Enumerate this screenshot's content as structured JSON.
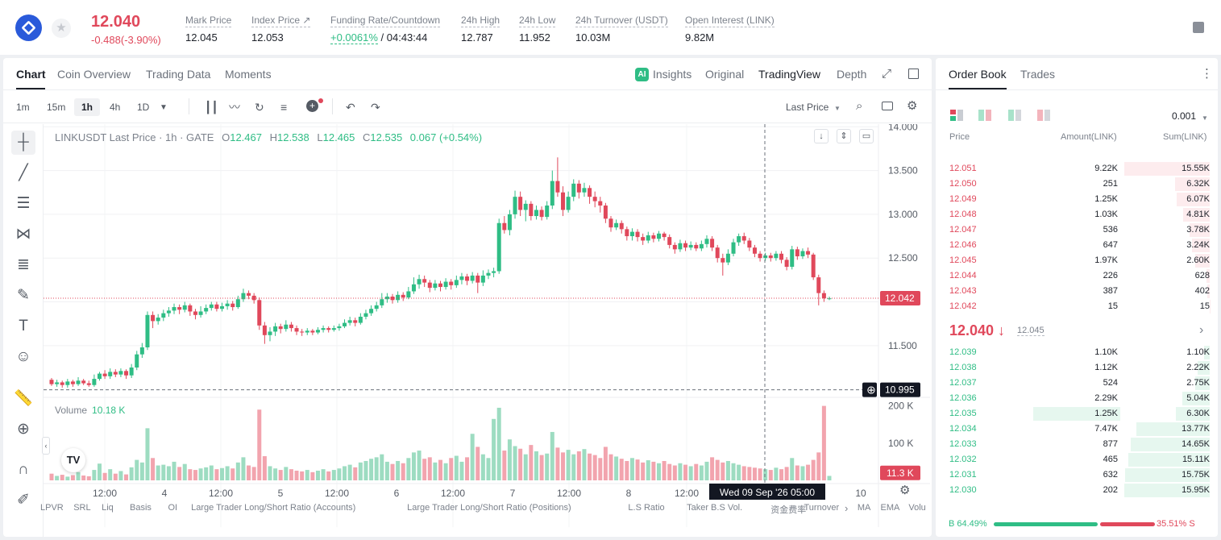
{
  "header": {
    "last_price": "12.040",
    "change": "-0.488(-3.90%)",
    "stats": [
      {
        "label": "Mark Price",
        "value": "12.045"
      },
      {
        "label": "Index Price ↗",
        "value": "12.053"
      },
      {
        "label": "Funding Rate/Countdown",
        "value_green": "+0.0061%",
        "value": " / 04:43:44"
      },
      {
        "label": "24h High",
        "value": "12.787"
      },
      {
        "label": "24h Low",
        "value": "11.952"
      },
      {
        "label": "24h Turnover (USDT)",
        "value": "10.03M"
      },
      {
        "label": "Open Interest (LINK)",
        "value": "9.82M"
      }
    ]
  },
  "chart_tabs": [
    "Chart",
    "Coin Overview",
    "Trading Data",
    "Moments"
  ],
  "view_tabs": {
    "insights": "Insights",
    "original": "Original",
    "tradingview": "TradingView",
    "depth": "Depth"
  },
  "timeframes": [
    "1m",
    "15m",
    "1h",
    "4h",
    "1D"
  ],
  "price_type": "Last Price",
  "legend": {
    "title": "LINKUSDT Last Price · 1h · GATE",
    "o_label": "O",
    "o": "12.467",
    "h_label": "H",
    "h": "12.538",
    "l_label": "L",
    "l": "12.465",
    "c_label": "C",
    "c": "12.535",
    "chg": "0.067 (+0.54%)"
  },
  "volume_legend": {
    "label": "Volume",
    "value": "10.18 K"
  },
  "price_axis": [
    "14.000",
    "13.500",
    "13.000",
    "12.500",
    "12.000",
    "11.500"
  ],
  "current_price_tag": "12.042",
  "crosshair_price_tag": "10.995",
  "volume_axis": [
    "200 K",
    "100 K"
  ],
  "volume_tag": "11.3 K",
  "time_axis": [
    "12:00",
    "4",
    "12:00",
    "5",
    "12:00",
    "6",
    "12:00",
    "7",
    "12:00",
    "8",
    "12:00",
    "10"
  ],
  "crosshair_time": "Wed 09 Sep '26   05:00",
  "indicators": [
    "LPVR",
    "SRL",
    "Liq",
    "Basis",
    "OI",
    "Large Trader Long/Short Ratio (Accounts)",
    "Large Trader Long/Short Ratio (Positions)",
    "L.S Ratio",
    "Taker B.S Vol.",
    "资金费率",
    "Turnover",
    "MA",
    "EMA",
    "Volu"
  ],
  "colors": {
    "up": "#2fbd85",
    "down": "#e0485b"
  },
  "chart_data": {
    "type": "candlestick",
    "title": "LINKUSDT Last Price · 1h · GATE",
    "ylim": [
      11.0,
      14.0
    ],
    "candles": [
      [
        11.11,
        11.06,
        11.13,
        11.04
      ],
      [
        11.06,
        11.08,
        11.11,
        11.03
      ],
      [
        11.08,
        11.05,
        11.1,
        11.02
      ],
      [
        11.05,
        11.09,
        11.12,
        11.02
      ],
      [
        11.09,
        11.06,
        11.11,
        11.03
      ],
      [
        11.06,
        11.1,
        11.14,
        11.04
      ],
      [
        11.1,
        11.07,
        11.12,
        11.05
      ],
      [
        11.07,
        11.05,
        11.1,
        11.03
      ],
      [
        11.05,
        11.12,
        11.17,
        11.03
      ],
      [
        11.12,
        11.18,
        11.2,
        11.1
      ],
      [
        11.18,
        11.15,
        11.22,
        11.12
      ],
      [
        11.15,
        11.2,
        11.24,
        11.12
      ],
      [
        11.2,
        11.17,
        11.23,
        11.14
      ],
      [
        11.17,
        11.21,
        11.24,
        11.14
      ],
      [
        11.21,
        11.16,
        11.23,
        11.12
      ],
      [
        11.16,
        11.25,
        11.29,
        11.13
      ],
      [
        11.25,
        11.4,
        11.44,
        11.22
      ],
      [
        11.4,
        11.48,
        11.53,
        11.36
      ],
      [
        11.48,
        11.85,
        11.89,
        11.45
      ],
      [
        11.85,
        11.78,
        11.89,
        11.7
      ],
      [
        11.78,
        11.82,
        11.86,
        11.74
      ],
      [
        11.82,
        11.87,
        11.91,
        11.78
      ],
      [
        11.87,
        11.9,
        11.94,
        11.83
      ],
      [
        11.9,
        11.94,
        11.98,
        11.86
      ],
      [
        11.94,
        11.91,
        11.97,
        11.86
      ],
      [
        11.91,
        11.96,
        12.0,
        11.88
      ],
      [
        11.96,
        11.89,
        11.98,
        11.84
      ],
      [
        11.89,
        11.85,
        11.92,
        11.8
      ],
      [
        11.85,
        11.89,
        11.95,
        11.82
      ],
      [
        11.89,
        11.93,
        11.97,
        11.86
      ],
      [
        11.93,
        11.97,
        12.0,
        11.9
      ],
      [
        11.97,
        11.92,
        12.0,
        11.89
      ],
      [
        11.92,
        11.95,
        11.99,
        11.89
      ],
      [
        11.95,
        11.98,
        12.02,
        11.91
      ],
      [
        11.98,
        11.94,
        12.01,
        11.9
      ],
      [
        11.94,
        12.03,
        12.07,
        11.92
      ],
      [
        12.03,
        12.1,
        12.15,
        12.0
      ],
      [
        12.1,
        12.07,
        12.13,
        12.03
      ],
      [
        12.07,
        12.02,
        12.1,
        11.98
      ],
      [
        12.02,
        11.73,
        12.05,
        11.68
      ],
      [
        11.73,
        11.62,
        11.77,
        11.52
      ],
      [
        11.62,
        11.66,
        11.71,
        11.55
      ],
      [
        11.66,
        11.72,
        11.76,
        11.61
      ],
      [
        11.72,
        11.69,
        11.75,
        11.64
      ],
      [
        11.69,
        11.74,
        11.79,
        11.66
      ],
      [
        11.74,
        11.7,
        11.77,
        11.66
      ],
      [
        11.7,
        11.66,
        11.73,
        11.62
      ],
      [
        11.66,
        11.65,
        11.69,
        11.61
      ],
      [
        11.65,
        11.67,
        11.7,
        11.62
      ],
      [
        11.67,
        11.65,
        11.69,
        11.62
      ],
      [
        11.65,
        11.68,
        11.71,
        11.63
      ],
      [
        11.68,
        11.7,
        11.73,
        11.65
      ],
      [
        11.7,
        11.68,
        11.72,
        11.65
      ],
      [
        11.68,
        11.7,
        11.73,
        11.66
      ],
      [
        11.7,
        11.72,
        11.75,
        11.67
      ],
      [
        11.72,
        11.76,
        11.8,
        11.7
      ],
      [
        11.76,
        11.79,
        11.83,
        11.73
      ],
      [
        11.79,
        11.76,
        11.82,
        11.72
      ],
      [
        11.76,
        11.83,
        11.87,
        11.74
      ],
      [
        11.83,
        11.87,
        11.91,
        11.8
      ],
      [
        11.87,
        11.92,
        11.96,
        11.84
      ],
      [
        11.92,
        11.96,
        12.0,
        11.89
      ],
      [
        11.96,
        12.03,
        12.1,
        11.93
      ],
      [
        12.03,
        12.06,
        12.1,
        11.99
      ],
      [
        12.06,
        12.02,
        12.09,
        11.98
      ],
      [
        12.02,
        12.08,
        12.12,
        11.99
      ],
      [
        12.08,
        12.05,
        12.11,
        12.01
      ],
      [
        12.05,
        12.12,
        12.17,
        12.03
      ],
      [
        12.12,
        12.2,
        12.28,
        12.09
      ],
      [
        12.2,
        12.26,
        12.31,
        12.15
      ],
      [
        12.26,
        12.22,
        12.3,
        12.17
      ],
      [
        12.22,
        12.16,
        12.25,
        12.11
      ],
      [
        12.16,
        12.21,
        12.25,
        12.13
      ],
      [
        12.21,
        12.17,
        12.24,
        12.12
      ],
      [
        12.17,
        12.23,
        12.27,
        12.14
      ],
      [
        12.23,
        12.19,
        12.26,
        12.14
      ],
      [
        12.19,
        12.25,
        12.3,
        12.16
      ],
      [
        12.25,
        12.29,
        12.33,
        12.2
      ],
      [
        12.29,
        12.24,
        12.32,
        12.19
      ],
      [
        12.24,
        12.3,
        12.34,
        12.21
      ],
      [
        12.3,
        12.22,
        12.33,
        12.1
      ],
      [
        12.22,
        12.3,
        12.36,
        12.18
      ],
      [
        12.3,
        12.33,
        12.37,
        12.26
      ],
      [
        12.33,
        12.35,
        12.39,
        12.28
      ],
      [
        12.35,
        12.9,
        12.95,
        12.32
      ],
      [
        12.9,
        12.82,
        12.98,
        12.78
      ],
      [
        12.82,
        13.0,
        13.05,
        12.76
      ],
      [
        13.0,
        13.2,
        13.27,
        12.95
      ],
      [
        13.2,
        13.05,
        13.26,
        12.98
      ],
      [
        13.05,
        13.12,
        13.16,
        12.92
      ],
      [
        13.12,
        12.98,
        13.15,
        12.93
      ],
      [
        12.98,
        13.05,
        13.1,
        12.94
      ],
      [
        13.05,
        12.97,
        13.09,
        12.93
      ],
      [
        12.97,
        13.1,
        13.15,
        12.94
      ],
      [
        13.1,
        13.38,
        13.5,
        13.06
      ],
      [
        13.38,
        13.25,
        13.65,
        13.2
      ],
      [
        13.25,
        13.05,
        13.32,
        12.98
      ],
      [
        13.05,
        13.2,
        13.26,
        13.02
      ],
      [
        13.2,
        13.35,
        13.4,
        13.15
      ],
      [
        13.35,
        13.25,
        13.39,
        13.18
      ],
      [
        13.25,
        13.3,
        13.36,
        13.2
      ],
      [
        13.3,
        13.2,
        13.33,
        13.12
      ],
      [
        13.2,
        13.15,
        13.26,
        13.08
      ],
      [
        13.15,
        13.1,
        13.2,
        13.02
      ],
      [
        13.1,
        12.95,
        13.13,
        12.9
      ],
      [
        12.95,
        12.85,
        12.98,
        12.8
      ],
      [
        12.85,
        12.9,
        12.94,
        12.82
      ],
      [
        12.9,
        12.83,
        12.93,
        12.78
      ],
      [
        12.83,
        12.75,
        12.86,
        12.7
      ],
      [
        12.75,
        12.8,
        12.84,
        12.7
      ],
      [
        12.8,
        12.74,
        12.83,
        12.69
      ],
      [
        12.74,
        12.7,
        12.78,
        12.65
      ],
      [
        12.7,
        12.76,
        12.8,
        12.67
      ],
      [
        12.76,
        12.72,
        12.79,
        12.68
      ],
      [
        12.72,
        12.78,
        12.81,
        12.69
      ],
      [
        12.78,
        12.74,
        12.8,
        12.7
      ],
      [
        12.74,
        12.65,
        12.77,
        12.61
      ],
      [
        12.65,
        12.6,
        12.68,
        12.55
      ],
      [
        12.6,
        12.67,
        12.71,
        12.57
      ],
      [
        12.67,
        12.62,
        12.7,
        12.58
      ],
      [
        12.62,
        12.65,
        12.69,
        12.59
      ],
      [
        12.65,
        12.61,
        12.68,
        12.58
      ],
      [
        12.61,
        12.66,
        12.7,
        12.58
      ],
      [
        12.66,
        12.72,
        12.76,
        12.62
      ],
      [
        12.72,
        12.62,
        12.75,
        12.58
      ],
      [
        12.62,
        12.5,
        12.65,
        12.45
      ],
      [
        12.5,
        12.45,
        12.55,
        12.3
      ],
      [
        12.45,
        12.55,
        12.6,
        12.42
      ],
      [
        12.55,
        12.68,
        12.72,
        12.52
      ],
      [
        12.68,
        12.75,
        12.78,
        12.64
      ],
      [
        12.75,
        12.7,
        12.79,
        12.66
      ],
      [
        12.7,
        12.62,
        12.73,
        12.58
      ],
      [
        12.62,
        12.55,
        12.65,
        12.51
      ],
      [
        12.55,
        12.5,
        12.58,
        12.46
      ],
      [
        12.5,
        12.53,
        12.56,
        12.47
      ],
      [
        12.53,
        12.5,
        12.56,
        12.46
      ],
      [
        12.5,
        12.55,
        12.58,
        12.47
      ],
      [
        12.55,
        12.48,
        12.58,
        12.44
      ],
      [
        12.48,
        12.4,
        12.51,
        12.36
      ],
      [
        12.4,
        12.6,
        12.64,
        12.37
      ],
      [
        12.6,
        12.52,
        12.63,
        12.48
      ],
      [
        12.52,
        12.58,
        12.61,
        12.49
      ],
      [
        12.58,
        12.54,
        12.62,
        12.5
      ],
      [
        12.54,
        12.28,
        12.56,
        12.25
      ],
      [
        12.28,
        12.1,
        12.31,
        11.96
      ],
      [
        12.1,
        12.04,
        12.13,
        12.0
      ],
      [
        12.04,
        12.04,
        12.06,
        12.02
      ]
    ],
    "volumes": [
      18,
      12,
      15,
      10,
      14,
      22,
      13,
      11,
      28,
      45,
      20,
      30,
      18,
      25,
      16,
      35,
      55,
      48,
      140,
      60,
      40,
      42,
      38,
      50,
      36,
      44,
      30,
      28,
      32,
      35,
      40,
      30,
      33,
      38,
      32,
      48,
      62,
      40,
      36,
      190,
      65,
      38,
      32,
      28,
      36,
      30,
      26,
      24,
      28,
      22,
      26,
      30,
      24,
      28,
      32,
      38,
      42,
      35,
      48,
      52,
      58,
      62,
      70,
      50,
      44,
      52,
      46,
      60,
      75,
      80,
      58,
      62,
      48,
      55,
      46,
      60,
      66,
      50,
      62,
      125,
      90,
      70,
      60,
      165,
      195,
      80,
      110,
      92,
      85,
      70,
      95,
      78,
      68,
      72,
      130,
      88,
      75,
      82,
      70,
      78,
      84,
      72,
      68,
      60,
      90,
      70,
      64,
      58,
      52,
      60,
      56,
      48,
      54,
      50,
      46,
      52,
      44,
      40,
      46,
      42,
      38,
      44,
      40,
      50,
      62,
      55,
      48,
      52,
      46,
      42,
      38,
      36,
      34,
      32,
      30,
      28,
      34,
      30,
      36,
      60,
      40,
      38,
      42,
      55,
      75,
      200,
      12
    ]
  },
  "order_book": {
    "tabs": [
      "Order Book",
      "Trades"
    ],
    "precision": "0.001",
    "headers": {
      "price": "Price",
      "amount": "Amount(LINK)",
      "sum": "Sum(LINK)"
    },
    "asks": [
      {
        "price": "12.051",
        "amount": "9.22K",
        "sum": "15.55K",
        "depth": 1.0
      },
      {
        "price": "12.050",
        "amount": "251",
        "sum": "6.32K",
        "depth": 0.41
      },
      {
        "price": "12.049",
        "amount": "1.25K",
        "sum": "6.07K",
        "depth": 0.39
      },
      {
        "price": "12.048",
        "amount": "1.03K",
        "sum": "4.81K",
        "depth": 0.31
      },
      {
        "price": "12.047",
        "amount": "536",
        "sum": "3.78K",
        "depth": 0.24
      },
      {
        "price": "12.046",
        "amount": "647",
        "sum": "3.24K",
        "depth": 0.21
      },
      {
        "price": "12.045",
        "amount": "1.97K",
        "sum": "2.60K",
        "depth": 0.17
      },
      {
        "price": "12.044",
        "amount": "226",
        "sum": "628",
        "depth": 0.04
      },
      {
        "price": "12.043",
        "amount": "387",
        "sum": "402",
        "depth": 0.026
      },
      {
        "price": "12.042",
        "amount": "15",
        "sum": "15",
        "depth": 0.001
      }
    ],
    "mid_price": "12.040 ↓",
    "mid_mark": "12.045",
    "bids": [
      {
        "price": "12.039",
        "amount": "1.10K",
        "sum": "1.10K",
        "depth": 0.07
      },
      {
        "price": "12.038",
        "amount": "1.12K",
        "sum": "2.22K",
        "depth": 0.14
      },
      {
        "price": "12.037",
        "amount": "524",
        "sum": "2.75K",
        "depth": 0.17
      },
      {
        "price": "12.036",
        "amount": "2.29K",
        "sum": "5.04K",
        "depth": 0.32
      },
      {
        "price": "12.035",
        "amount": "1.25K",
        "sum": "6.30K",
        "depth": 0.4
      },
      {
        "price": "12.034",
        "amount": "7.47K",
        "sum": "13.77K",
        "depth": 0.86
      },
      {
        "price": "12.033",
        "amount": "877",
        "sum": "14.65K",
        "depth": 0.92
      },
      {
        "price": "12.032",
        "amount": "465",
        "sum": "15.11K",
        "depth": 0.95
      },
      {
        "price": "12.031",
        "amount": "632",
        "sum": "15.75K",
        "depth": 0.99
      },
      {
        "price": "12.030",
        "amount": "202",
        "sum": "15.95K",
        "depth": 1.0
      }
    ],
    "buy_ratio": "B 64.49%",
    "sell_ratio": "35.51% S",
    "buy_fraction": 0.6449
  }
}
